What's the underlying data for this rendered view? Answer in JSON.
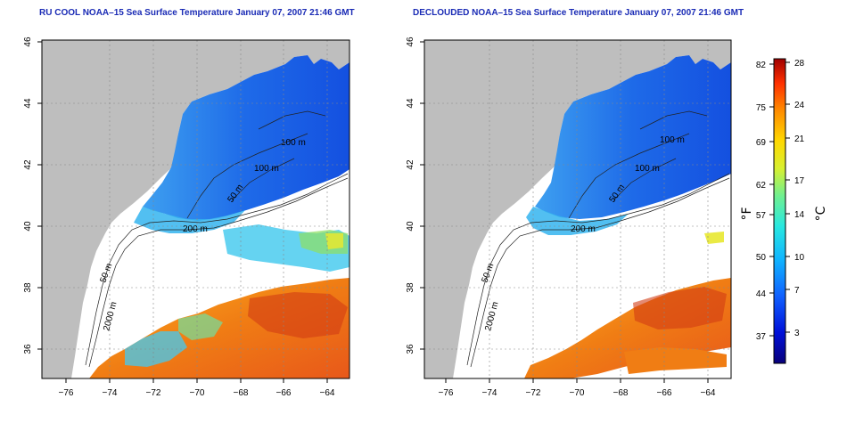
{
  "panels": [
    {
      "id": "left",
      "title": "RU COOL NOAA–15 Sea Surface Temperature January 07, 2007 21:46 GMT",
      "contours": [
        "100 m",
        "100 m",
        "50 m",
        "200 m",
        "50 m",
        "2000 m"
      ]
    },
    {
      "id": "right",
      "title": "DECLOUDED NOAA–15 Sea Surface Temperature January 07, 2007 21:46 GMT",
      "contours": [
        "100 m",
        "100 m",
        "50 m",
        "200 m",
        "50 m",
        "2000 m"
      ]
    }
  ],
  "axes": {
    "x_ticks": [
      "−76",
      "−74",
      "−72",
      "−70",
      "−68",
      "−66",
      "−64"
    ],
    "y_ticks": [
      "46",
      "44",
      "42",
      "40",
      "38",
      "36"
    ]
  },
  "colorbar": {
    "fahrenheit_ticks": [
      "82",
      "75",
      "69",
      "62",
      "57",
      "50",
      "44",
      "37"
    ],
    "celsius_ticks": [
      "28",
      "24",
      "21",
      "17",
      "14",
      "10",
      "7",
      "3"
    ],
    "fahrenheit_unit": "°F",
    "celsius_unit": "°C"
  },
  "colors": {
    "land": "#bebebe",
    "cloud": "#ffffff",
    "cold": "#1e5ae6",
    "mid": "#3ec8ee",
    "warm": "#f07d14",
    "hot": "#d23c14",
    "title": "#1a2bb5"
  }
}
